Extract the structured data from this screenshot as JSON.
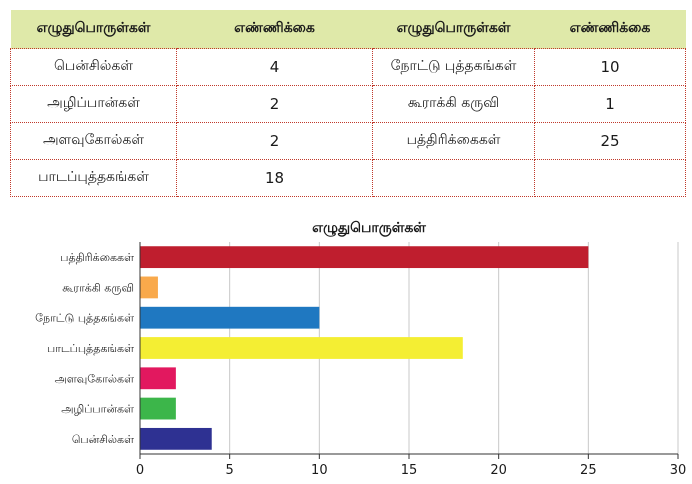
{
  "table": {
    "headers": [
      "எழுதுபொருள்கள்",
      "எண்ணிக்கை",
      "எழுதுபொருள்கள்",
      "எண்ணிக்கை"
    ],
    "rows": [
      [
        "பென்சில்கள்",
        "4",
        "நோட்டு புத்தகங்கள்",
        "10"
      ],
      [
        "அழிப்பான்கள்",
        "2",
        "கூராக்கி கருவி",
        "1"
      ],
      [
        "அளவுகோல்கள்",
        "2",
        "பத்திரிக்கைகள்",
        "25"
      ],
      [
        "பாடப்புத்தகங்கள்",
        "18",
        "",
        ""
      ]
    ]
  },
  "chart_data": {
    "type": "bar",
    "orientation": "horizontal",
    "title": "எழுதுபொருள்கள்",
    "categories": [
      "பத்திரிக்கைகள்",
      "கூராக்கி கருவி",
      "நோட்டு புத்தகங்கள்",
      "பாடப்புத்தகங்கள்",
      "அளவுகோல்கள்",
      "அழிப்பான்கள்",
      "பென்சில்கள்"
    ],
    "values": [
      25,
      1,
      10,
      18,
      2,
      2,
      4
    ],
    "colors": [
      "#bf1e2e",
      "#f9a94b",
      "#1f78c1",
      "#f4ee33",
      "#e2185f",
      "#3cb64a",
      "#2e3192"
    ],
    "xlim": [
      0,
      30
    ],
    "xticks": [
      0,
      5,
      10,
      15,
      20,
      25,
      30
    ],
    "grid": true
  }
}
